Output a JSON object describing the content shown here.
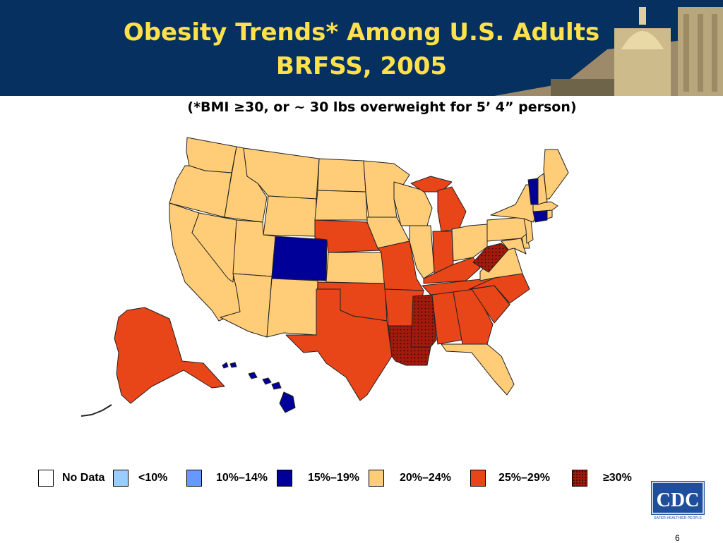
{
  "title_line1": "Obesity Trends* Among U.S. Adults",
  "title_line2": "BRFSS, 2005",
  "subtitle": "(*BMI ≥30, or ~ 30 lbs overweight for 5’ 4” person)",
  "colors": {
    "header_bg": "#06305f",
    "title": "#ffe14b",
    "no_data": "#ffffff",
    "lt10": "#99ccff",
    "p10_14": "#6699ff",
    "p15_19": "#000099",
    "p20_24": "#ffcc77",
    "p25_29": "#e84519",
    "ge30": "#a21a0c"
  },
  "legend": [
    {
      "label": "No Data",
      "category": "no_data",
      "color": "#ffffff"
    },
    {
      "label": "<10%",
      "category": "lt10",
      "color": "#99ccff"
    },
    {
      "label": "10%–14%",
      "category": "p10_14",
      "color": "#6699ff"
    },
    {
      "label": "15%–19%",
      "category": "p15_19",
      "color": "#000099"
    },
    {
      "label": "20%–24%",
      "category": "p20_24",
      "color": "#ffcc77"
    },
    {
      "label": "25%–29%",
      "category": "p25_29",
      "color": "#e84519"
    },
    {
      "label": "≥30%",
      "category": "ge30",
      "color": "#a21a0c"
    }
  ],
  "state_categories": {
    "WA": "p20_24",
    "OR": "p20_24",
    "CA": "p20_24",
    "NV": "p20_24",
    "ID": "p20_24",
    "MT": "p20_24",
    "WY": "p20_24",
    "UT": "p20_24",
    "AZ": "p20_24",
    "NM": "p20_24",
    "CO": "p15_19",
    "ND": "p20_24",
    "SD": "p20_24",
    "NE": "p25_29",
    "KS": "p20_24",
    "OK": "p25_29",
    "TX": "p25_29",
    "MN": "p20_24",
    "IA": "p20_24",
    "MO": "p25_29",
    "AR": "p25_29",
    "LA": "ge30",
    "WI": "p20_24",
    "IL": "p20_24",
    "MI": "p25_29",
    "IN": "p25_29",
    "OH": "p20_24",
    "KY": "p25_29",
    "TN": "p25_29",
    "MS": "ge30",
    "AL": "p25_29",
    "GA": "p25_29",
    "FL": "p20_24",
    "SC": "p25_29",
    "NC": "p25_29",
    "VA": "p20_24",
    "WV": "ge30",
    "MD": "p20_24",
    "DE": "p20_24",
    "PA": "p20_24",
    "NJ": "p20_24",
    "NY": "p20_24",
    "CT": "p15_19",
    "RI": "p20_24",
    "MA": "p20_24",
    "VT": "p15_19",
    "NH": "p20_24",
    "ME": "p20_24",
    "AK": "p25_29",
    "HI": "p15_19"
  },
  "logo": {
    "text": "CDC",
    "tagline": "SAFER·HEALTHIER·PEOPLE"
  },
  "page_number": "6"
}
